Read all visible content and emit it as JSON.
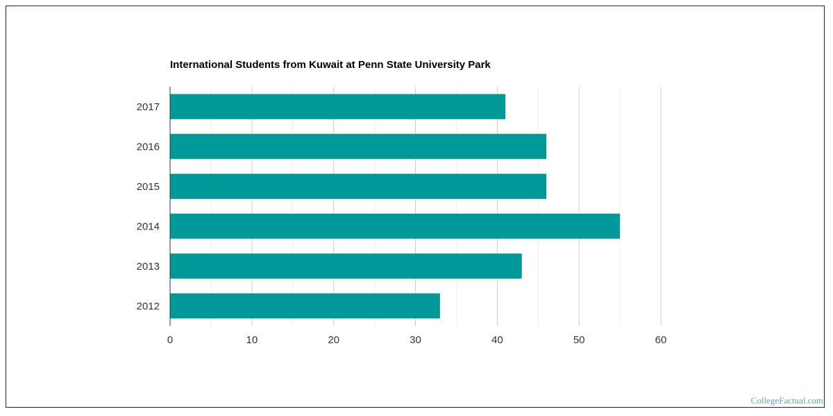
{
  "chart_data": {
    "type": "bar",
    "orientation": "horizontal",
    "title": "International Students from Kuwait at Penn State University Park",
    "categories": [
      "2017",
      "2016",
      "2015",
      "2014",
      "2013",
      "2012"
    ],
    "values": [
      41,
      46,
      46,
      55,
      43,
      33
    ],
    "xlim": [
      0,
      60
    ],
    "xticks": [
      "0",
      "10",
      "20",
      "30",
      "40",
      "50",
      "60"
    ],
    "grid": true,
    "bar_color": "#009999"
  },
  "watermark": {
    "text": "CollegeFactual.com",
    "color": "#5fa7a7"
  }
}
